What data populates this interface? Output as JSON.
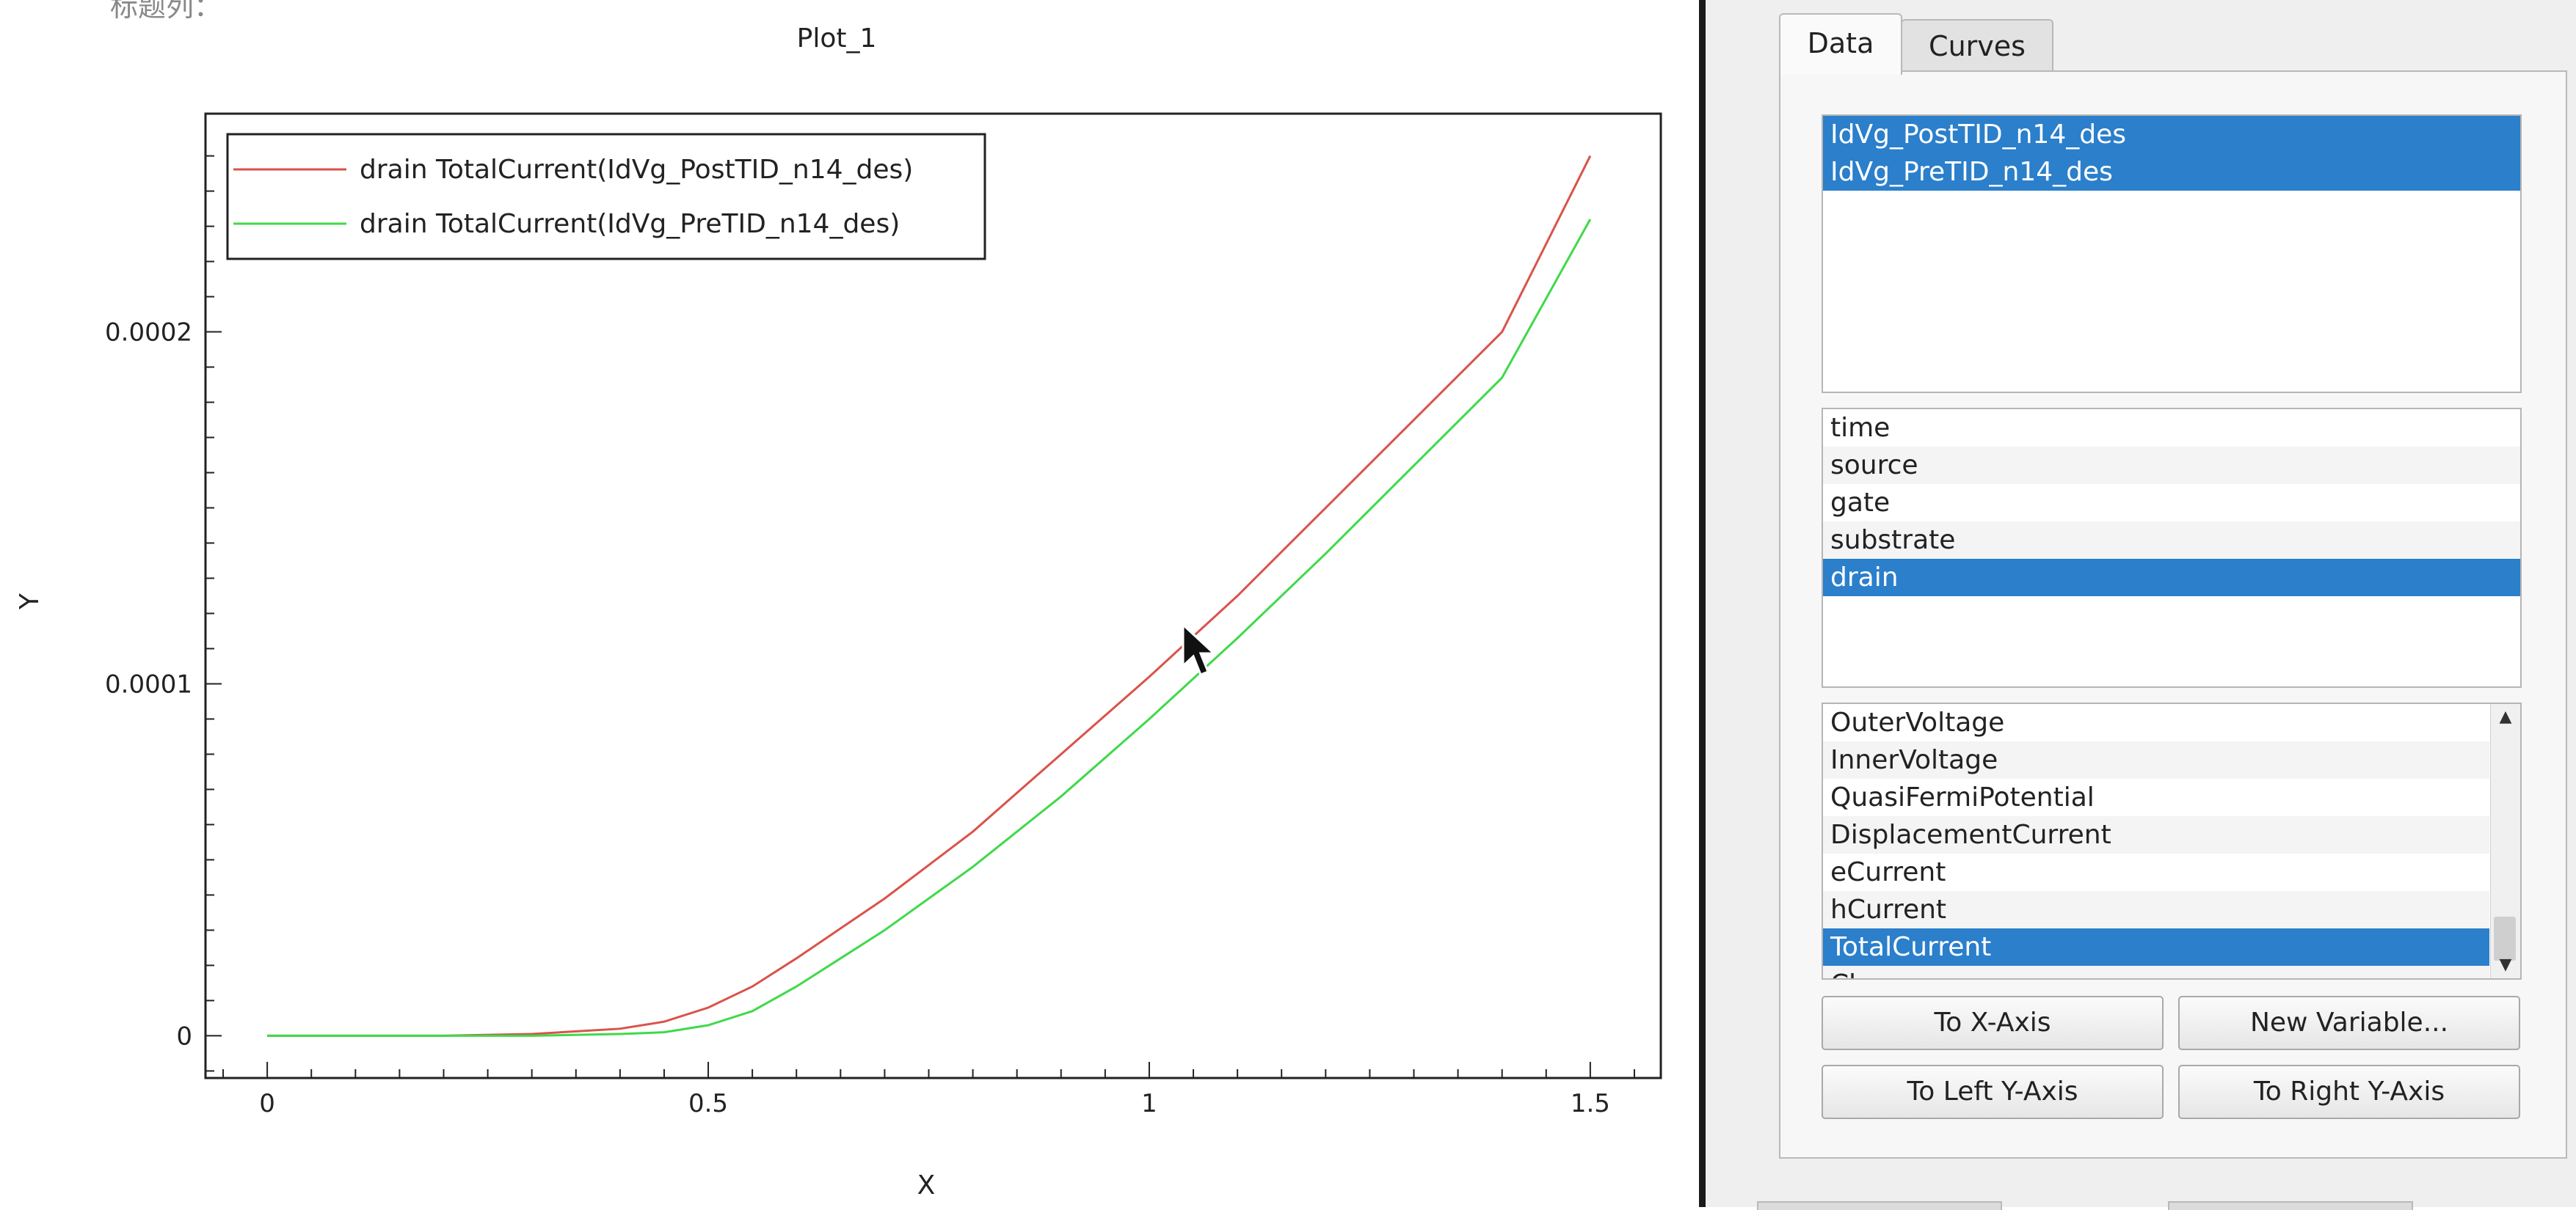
{
  "top_left_fragment": "标题列：",
  "chart_data": {
    "type": "line",
    "title": "Plot_1",
    "xlabel": "X",
    "ylabel": "Y",
    "xlim": [
      -0.07,
      1.58
    ],
    "ylim": [
      -1.2e-05,
      0.000262
    ],
    "xticks": [
      0,
      0.5,
      1,
      1.5
    ],
    "xtick_labels": [
      "0",
      "0.5",
      "1",
      "1.5"
    ],
    "yticks": [
      0,
      0.0001,
      0.0002
    ],
    "ytick_labels": [
      "0",
      "0.0001",
      "0.0002"
    ],
    "legend_position": "top-left",
    "grid": false,
    "series": [
      {
        "name": "drain TotalCurrent(IdVg_PostTID_n14_des)",
        "color": "#d9534a",
        "x": [
          0.0,
          0.1,
          0.2,
          0.3,
          0.4,
          0.45,
          0.5,
          0.55,
          0.6,
          0.7,
          0.8,
          0.9,
          1.0,
          1.1,
          1.2,
          1.3,
          1.4,
          1.5
        ],
        "y": [
          0.0,
          0.0,
          0.0,
          5e-07,
          2e-06,
          4e-06,
          8e-06,
          1.4e-05,
          2.2e-05,
          3.9e-05,
          5.8e-05,
          8e-05,
          0.000102,
          0.000125,
          0.00015,
          0.000175,
          0.0002,
          0.00025
        ]
      },
      {
        "name": "drain TotalCurrent(IdVg_PreTID_n14_des)",
        "color": "#3fd94a",
        "x": [
          0.0,
          0.1,
          0.2,
          0.3,
          0.4,
          0.45,
          0.5,
          0.55,
          0.6,
          0.7,
          0.8,
          0.9,
          1.0,
          1.1,
          1.2,
          1.3,
          1.4,
          1.5
        ],
        "y": [
          0.0,
          0.0,
          0.0,
          0.0,
          5e-07,
          1e-06,
          3e-06,
          7e-06,
          1.4e-05,
          3e-05,
          4.8e-05,
          6.8e-05,
          9e-05,
          0.000113,
          0.000137,
          0.000162,
          0.000187,
          0.000232
        ]
      }
    ]
  },
  "panel": {
    "tabs": [
      "Data",
      "Curves"
    ],
    "active_tab": "Data",
    "datasets": [
      "IdVg_PostTID_n14_des",
      "IdVg_PreTID_n14_des"
    ],
    "groups": [
      "time",
      "source",
      "gate",
      "substrate",
      "drain"
    ],
    "selected_group": "drain",
    "variables": [
      "OuterVoltage",
      "InnerVoltage",
      "QuasiFermiPotential",
      "DisplacementCurrent",
      "eCurrent",
      "hCurrent",
      "TotalCurrent",
      "Ch"
    ],
    "selected_variable": "TotalCurrent",
    "buttons": {
      "to_x_axis": "To X-Axis",
      "new_variable": "New Variable...",
      "to_left_y": "To Left Y-Axis",
      "to_right_y": "To Right Y-Axis"
    }
  }
}
